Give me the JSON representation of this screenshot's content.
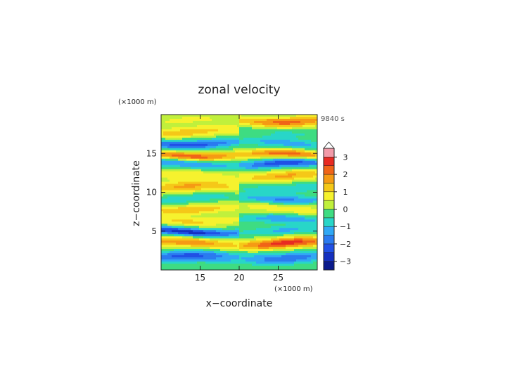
{
  "chart_data": {
    "type": "heatmap",
    "title": "zonal velocity",
    "xlabel": "x−coordinate",
    "ylabel": "z−coordinate",
    "x_unit_label": "(×1000 m)",
    "y_unit_label": "(×1000 m)",
    "time_label": "9840 s",
    "xlim": [
      10,
      30
    ],
    "ylim": [
      0,
      20
    ],
    "x_ticks": [
      15,
      20,
      25
    ],
    "y_ticks": [
      5,
      10,
      15
    ],
    "x_tick_labels": [
      "15",
      "20",
      "25"
    ],
    "y_tick_labels": [
      "5",
      "10",
      "15"
    ],
    "colorbar": {
      "range": [
        -3.5,
        3.5
      ],
      "ticks": [
        3,
        2,
        1,
        0,
        -1,
        -2,
        -3
      ],
      "tick_labels": [
        "3",
        "2",
        "1",
        "0",
        "−1",
        "−2",
        "−3"
      ],
      "extend": "max",
      "levels": [
        {
          "from": -3.5,
          "to": -3.0,
          "color": "#0a1a8c"
        },
        {
          "from": -3.0,
          "to": -2.5,
          "color": "#1530c0"
        },
        {
          "from": -2.5,
          "to": -2.0,
          "color": "#2050e6"
        },
        {
          "from": -2.0,
          "to": -1.5,
          "color": "#2a7af0"
        },
        {
          "from": -1.5,
          "to": -1.0,
          "color": "#30a8f5"
        },
        {
          "from": -1.0,
          "to": -0.5,
          "color": "#28d6c8"
        },
        {
          "from": -0.5,
          "to": 0.0,
          "color": "#3edc82"
        },
        {
          "from": 0.0,
          "to": 0.5,
          "color": "#c0f03c"
        },
        {
          "from": 0.5,
          "to": 1.0,
          "color": "#f6f22e"
        },
        {
          "from": 1.0,
          "to": 1.5,
          "color": "#f5c818"
        },
        {
          "from": 1.5,
          "to": 2.0,
          "color": "#f59a14"
        },
        {
          "from": 2.0,
          "to": 2.5,
          "color": "#f06418"
        },
        {
          "from": 2.5,
          "to": 3.0,
          "color": "#e82a22"
        },
        {
          "from": 3.0,
          "to": 3.5,
          "color": "#f29aa8"
        }
      ],
      "over_color": "#ffffff"
    },
    "field": {
      "description_of_bands": "horizontal bands of zonal velocity alternating sign with height",
      "z_centers": [
        1.6,
        3.4,
        4.9,
        6.4,
        7.9,
        9.2,
        10.6,
        12.1,
        13.6,
        14.8,
        16.3,
        17.8,
        19.2
      ],
      "amplitudes": [
        -2.2,
        1.9,
        -2.8,
        1.1,
        1.4,
        -0.9,
        1.6,
        0.9,
        -1.6,
        2.4,
        -2.3,
        1.3,
        0.6
      ],
      "band_widths": [
        0.75,
        0.65,
        0.55,
        0.6,
        0.6,
        0.55,
        0.7,
        0.7,
        0.6,
        0.55,
        0.6,
        0.65,
        0.7
      ],
      "left_peak_x": 13.5,
      "right_peak_x": 26,
      "node_x": 20,
      "right_sign_flip": true
    }
  }
}
